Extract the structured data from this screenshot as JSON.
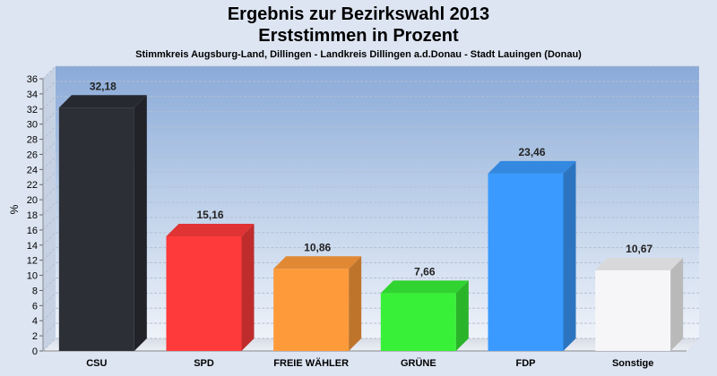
{
  "chart_data": {
    "type": "bar",
    "title": "Ergebnis zur Bezirkswahl 2013",
    "title2": "Erststimmen in Prozent",
    "subtitle": "Stimmkreis Augsburg-Land, Dillingen - Landkreis Dillingen a.d.Donau - Stadt Lauingen (Donau)",
    "ylabel": "%",
    "ylim": [
      0,
      36
    ],
    "yticks": [
      "0",
      "2",
      "4",
      "6",
      "8",
      "10",
      "12",
      "14",
      "16",
      "18",
      "20",
      "22",
      "24",
      "26",
      "28",
      "30",
      "32",
      "34",
      "36"
    ],
    "grid": true,
    "categories": [
      "CSU",
      "SPD",
      "FREIE WÄHLER",
      "GRÜNE",
      "FDP",
      "Sonstige"
    ],
    "values": [
      32.18,
      15.16,
      10.86,
      7.66,
      23.46,
      10.67
    ],
    "value_labels": [
      "32,18",
      "15,16",
      "10,86",
      "7,66",
      "23,46",
      "10,67"
    ],
    "colors": [
      "#2c2f36",
      "#ff3a3a",
      "#ff9a3a",
      "#38f038",
      "#3a9aff",
      "#f6f6f8"
    ]
  }
}
